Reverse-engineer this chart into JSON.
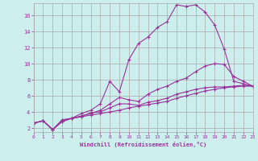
{
  "xlabel": "Windchill (Refroidissement éolien,°C)",
  "ylabel": "",
  "background_color": "#cceeed",
  "grid_color": "#aaaaaa",
  "line_color": "#993399",
  "xlim": [
    0,
    23
  ],
  "ylim": [
    1.5,
    17.5
  ],
  "yticks": [
    2,
    4,
    6,
    8,
    10,
    12,
    14,
    16
  ],
  "xticks": [
    0,
    1,
    2,
    3,
    4,
    5,
    6,
    7,
    8,
    9,
    10,
    11,
    12,
    13,
    14,
    15,
    16,
    17,
    18,
    19,
    20,
    21,
    22,
    23
  ],
  "series": [
    {
      "x": [
        0,
        1,
        2,
        3,
        4,
        5,
        6,
        7,
        8,
        9,
        10,
        11,
        12,
        13,
        14,
        15,
        16,
        17,
        18,
        19,
        20,
        21,
        22,
        23
      ],
      "y": [
        2.6,
        2.9,
        1.8,
        2.8,
        3.2,
        3.4,
        3.6,
        3.8,
        4.0,
        4.2,
        4.5,
        4.7,
        4.9,
        5.1,
        5.3,
        5.7,
        6.0,
        6.3,
        6.6,
        6.8,
        7.0,
        7.1,
        7.2,
        7.2
      ]
    },
    {
      "x": [
        0,
        1,
        2,
        3,
        4,
        5,
        6,
        7,
        8,
        9,
        10,
        11,
        12,
        13,
        14,
        15,
        16,
        17,
        18,
        19,
        20,
        21,
        22,
        23
      ],
      "y": [
        2.6,
        2.9,
        1.8,
        3.0,
        3.2,
        3.8,
        4.2,
        5.0,
        7.8,
        6.5,
        10.5,
        12.5,
        13.3,
        14.5,
        15.2,
        17.3,
        17.1,
        17.3,
        16.4,
        14.8,
        11.8,
        7.8,
        7.5,
        7.2
      ]
    },
    {
      "x": [
        0,
        1,
        2,
        3,
        4,
        5,
        6,
        7,
        8,
        9,
        10,
        11,
        12,
        13,
        14,
        15,
        16,
        17,
        18,
        19,
        20,
        21,
        22,
        23
      ],
      "y": [
        2.6,
        2.9,
        1.8,
        3.0,
        3.2,
        3.5,
        3.8,
        4.2,
        5.0,
        5.8,
        5.5,
        5.3,
        6.2,
        6.8,
        7.2,
        7.8,
        8.2,
        9.0,
        9.7,
        10.0,
        9.9,
        8.4,
        7.8,
        7.2
      ]
    },
    {
      "x": [
        0,
        1,
        2,
        3,
        4,
        5,
        6,
        7,
        8,
        9,
        10,
        11,
        12,
        13,
        14,
        15,
        16,
        17,
        18,
        19,
        20,
        21,
        22,
        23
      ],
      "y": [
        2.6,
        2.9,
        1.8,
        2.8,
        3.2,
        3.4,
        3.9,
        4.0,
        4.5,
        5.0,
        5.0,
        4.8,
        5.2,
        5.4,
        5.7,
        6.2,
        6.5,
        6.8,
        7.0,
        7.1,
        7.1,
        7.2,
        7.3,
        7.2
      ]
    }
  ]
}
